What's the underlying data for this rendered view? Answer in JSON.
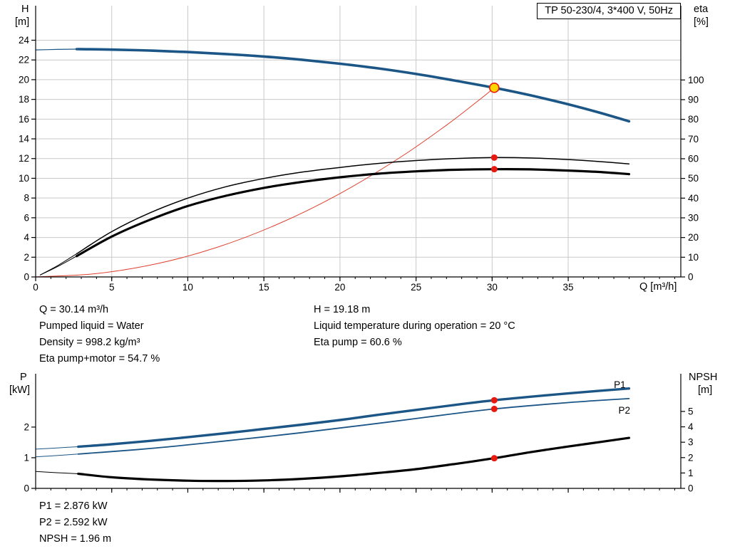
{
  "title_box": {
    "label": "TP 50-230/4, 3*400 V, 50Hz"
  },
  "info_top": {
    "col1": [
      "Q = 30.14 m³/h",
      "Pumped liquid = Water",
      "Density = 998.2 kg/m³",
      "Eta pump+motor = 54.7 %"
    ],
    "col2": [
      "H = 19.18 m",
      "Liquid temperature during operation = 20 °C",
      "Eta pump = 60.6 %"
    ]
  },
  "info_bottom": [
    "P1 = 2.876 kW",
    "P2 = 2.592 kW",
    "NPSH = 1.96 m"
  ],
  "colors": {
    "curve_blue": "#1c5687",
    "curve_black": "#000000",
    "system_red": "#e0402f",
    "marker_red": "#e8190f",
    "duty_yellow": "#ffd500",
    "grid": "#c9c9c9",
    "axis": "#000000"
  },
  "chart_data": [
    {
      "type": "line",
      "title": "TP 50-230/4, 3*400 V, 50Hz",
      "xlabel": "Q [m³/h]",
      "ylabel_left": [
        "H",
        "[m]"
      ],
      "ylabel_right": [
        "eta",
        "[%]"
      ],
      "xlim": [
        0,
        42.4
      ],
      "ylim_left": [
        0,
        27.5
      ],
      "ylim_right": [
        0,
        137.7
      ],
      "x_ticks": [
        0,
        5,
        10,
        15,
        20,
        25,
        30,
        35
      ],
      "x_labels": true,
      "x_minor_step": 1,
      "y_left_ticks": [
        0,
        2,
        4,
        6,
        8,
        10,
        12,
        14,
        16,
        18,
        20,
        22,
        24
      ],
      "y_right_ticks": [
        0,
        10,
        20,
        30,
        40,
        50,
        60,
        70,
        80,
        90,
        100
      ],
      "grid": true,
      "series": [
        {
          "name": "h-q-leader",
          "axis": "left",
          "color": "#1c5687",
          "width": 1.2,
          "points": [
            [
              0,
              23.02
            ],
            [
              1.4,
              23.07
            ],
            [
              2.7,
              23.1
            ]
          ]
        },
        {
          "name": "h-q-curve",
          "axis": "left",
          "color": "#1c5687",
          "width": 3.6,
          "points": [
            [
              2.7,
              23.1
            ],
            [
              5,
              23.05
            ],
            [
              7.5,
              22.95
            ],
            [
              10,
              22.8
            ],
            [
              12.5,
              22.6
            ],
            [
              15,
              22.35
            ],
            [
              17.5,
              22.02
            ],
            [
              20,
              21.62
            ],
            [
              22.5,
              21.15
            ],
            [
              25,
              20.58
            ],
            [
              27.5,
              19.92
            ],
            [
              30.14,
              19.18
            ],
            [
              32.5,
              18.42
            ],
            [
              35,
              17.5
            ],
            [
              37,
              16.68
            ],
            [
              39,
              15.78
            ]
          ]
        },
        {
          "name": "system-curve",
          "axis": "left",
          "color": "#e0402f",
          "width": 1,
          "points": [
            [
              0,
              0
            ],
            [
              4,
              0.34
            ],
            [
              8,
              1.35
            ],
            [
              12,
              3.04
            ],
            [
              16,
              5.41
            ],
            [
              20,
              8.45
            ],
            [
              24,
              12.16
            ],
            [
              27,
              15.39
            ],
            [
              29,
              17.76
            ],
            [
              30.14,
              19.18
            ]
          ]
        },
        {
          "name": "eta-pump-leader",
          "axis": "right",
          "color": "#000000",
          "width": 1,
          "points": [
            [
              0.3,
              1
            ],
            [
              1.5,
              6
            ],
            [
              2.7,
              11.8
            ]
          ]
        },
        {
          "name": "eta-pump-curve",
          "axis": "right",
          "color": "#000000",
          "width": 1.5,
          "points": [
            [
              2.7,
              11.8
            ],
            [
              5,
              23
            ],
            [
              7.5,
              32.5
            ],
            [
              10,
              40
            ],
            [
              12.5,
              45.8
            ],
            [
              15,
              50
            ],
            [
              17.5,
              53.2
            ],
            [
              20,
              55.6
            ],
            [
              22.5,
              57.6
            ],
            [
              25,
              59.1
            ],
            [
              27.5,
              60.1
            ],
            [
              30.14,
              60.6
            ],
            [
              32.5,
              60.4
            ],
            [
              35,
              59.6
            ],
            [
              37,
              58.6
            ],
            [
              39,
              57.4
            ]
          ]
        },
        {
          "name": "eta-pump-motor-leader",
          "axis": "right",
          "color": "#000000",
          "width": 1,
          "points": [
            [
              0.3,
              1
            ],
            [
              1.5,
              5.5
            ],
            [
              2.7,
              10.6
            ]
          ]
        },
        {
          "name": "eta-pump-motor-curve",
          "axis": "right",
          "color": "#000000",
          "width": 3.2,
          "points": [
            [
              2.7,
              10.6
            ],
            [
              5,
              20.5
            ],
            [
              7.5,
              29
            ],
            [
              10,
              36
            ],
            [
              12.5,
              41.2
            ],
            [
              15,
              45.2
            ],
            [
              17.5,
              48.2
            ],
            [
              20,
              50.6
            ],
            [
              22.5,
              52.4
            ],
            [
              25,
              53.6
            ],
            [
              27.5,
              54.4
            ],
            [
              30.14,
              54.7
            ],
            [
              32.5,
              54.6
            ],
            [
              35,
              54
            ],
            [
              37,
              53.3
            ],
            [
              39,
              52.2
            ]
          ]
        }
      ],
      "markers": [
        {
          "name": "duty-point",
          "q": 30.14,
          "v": 19.18,
          "axis": "left",
          "r": 6.5,
          "fill": "#ffd500",
          "stroke": "#e8190f",
          "stroke_width": 1.6
        },
        {
          "name": "eta-pump-point",
          "q": 30.14,
          "v": 60.6,
          "axis": "right",
          "r": 4.5,
          "fill": "#e8190f"
        },
        {
          "name": "eta-pump-motor-point",
          "q": 30.14,
          "v": 54.7,
          "axis": "right",
          "r": 4.5,
          "fill": "#e8190f"
        }
      ],
      "labels": []
    },
    {
      "type": "line",
      "xlabel": "",
      "ylabel_left": [
        "P",
        "[kW]"
      ],
      "ylabel_right": [
        "NPSH",
        "[m]"
      ],
      "xlim": [
        0,
        42.4
      ],
      "ylim_left": [
        0,
        3.74
      ],
      "ylim_right": [
        0,
        7.45
      ],
      "x_ticks": [
        5,
        10,
        15,
        20,
        25,
        30,
        35
      ],
      "x_labels": false,
      "x_minor_step": 1,
      "y_left_ticks": [
        0,
        1,
        2
      ],
      "y_right_ticks": [
        0,
        1,
        2,
        3,
        4,
        5
      ],
      "grid": false,
      "series": [
        {
          "name": "p1-leader",
          "axis": "left",
          "color": "#1c5687",
          "width": 1,
          "points": [
            [
              0,
              1.28
            ],
            [
              1.4,
              1.32
            ],
            [
              2.8,
              1.36
            ]
          ]
        },
        {
          "name": "p1-curve",
          "axis": "left",
          "color": "#1c5687",
          "width": 3.4,
          "points": [
            [
              2.8,
              1.36
            ],
            [
              5,
              1.44
            ],
            [
              7.5,
              1.55
            ],
            [
              10,
              1.67
            ],
            [
              12.5,
              1.8
            ],
            [
              15,
              1.94
            ],
            [
              17.5,
              2.08
            ],
            [
              20,
              2.23
            ],
            [
              22.5,
              2.4
            ],
            [
              25,
              2.56
            ],
            [
              27.5,
              2.72
            ],
            [
              30.14,
              2.876
            ],
            [
              32.5,
              2.99
            ],
            [
              35,
              3.1
            ],
            [
              37,
              3.18
            ],
            [
              39,
              3.26
            ]
          ]
        },
        {
          "name": "p2-leader",
          "axis": "left",
          "color": "#1c5687",
          "width": 1,
          "points": [
            [
              0,
              1.03
            ],
            [
              1.4,
              1.07
            ],
            [
              2.8,
              1.12
            ]
          ]
        },
        {
          "name": "p2-curve",
          "axis": "left",
          "color": "#1c5687",
          "width": 1.8,
          "points": [
            [
              2.8,
              1.12
            ],
            [
              5,
              1.2
            ],
            [
              7.5,
              1.3
            ],
            [
              10,
              1.42
            ],
            [
              12.5,
              1.55
            ],
            [
              15,
              1.68
            ],
            [
              17.5,
              1.82
            ],
            [
              20,
              1.97
            ],
            [
              22.5,
              2.12
            ],
            [
              25,
              2.28
            ],
            [
              27.5,
              2.44
            ],
            [
              30.14,
              2.592
            ],
            [
              32.5,
              2.7
            ],
            [
              35,
              2.8
            ],
            [
              37,
              2.87
            ],
            [
              39,
              2.93
            ]
          ]
        },
        {
          "name": "npsh-leader",
          "axis": "right",
          "color": "#000000",
          "width": 1,
          "points": [
            [
              0,
              1.1
            ],
            [
              1.4,
              1.02
            ],
            [
              2.8,
              0.95
            ]
          ]
        },
        {
          "name": "npsh-curve",
          "axis": "right",
          "color": "#000000",
          "width": 3.2,
          "points": [
            [
              2.8,
              0.95
            ],
            [
              5,
              0.72
            ],
            [
              7.5,
              0.58
            ],
            [
              10,
              0.5
            ],
            [
              12.5,
              0.48
            ],
            [
              15,
              0.52
            ],
            [
              17.5,
              0.62
            ],
            [
              20,
              0.78
            ],
            [
              22.5,
              1.0
            ],
            [
              25,
              1.25
            ],
            [
              27.5,
              1.58
            ],
            [
              30.14,
              1.96
            ],
            [
              32.5,
              2.35
            ],
            [
              35,
              2.72
            ],
            [
              37,
              3.0
            ],
            [
              39,
              3.28
            ]
          ]
        }
      ],
      "markers": [
        {
          "name": "p1-point",
          "q": 30.14,
          "v": 2.876,
          "axis": "left",
          "r": 4.5,
          "fill": "#e8190f"
        },
        {
          "name": "p2-point",
          "q": 30.14,
          "v": 2.592,
          "axis": "left",
          "r": 4.5,
          "fill": "#e8190f"
        },
        {
          "name": "npsh-point",
          "q": 30.14,
          "v": 1.96,
          "axis": "right",
          "r": 4.5,
          "fill": "#e8190f"
        }
      ],
      "labels": [
        {
          "text": "P1",
          "q": 38,
          "v": 3.28,
          "axis": "left",
          "color": "#1c5687"
        },
        {
          "text": "P2",
          "q": 38.3,
          "v": 2.44,
          "axis": "left",
          "color": "#1c5687"
        }
      ]
    }
  ]
}
